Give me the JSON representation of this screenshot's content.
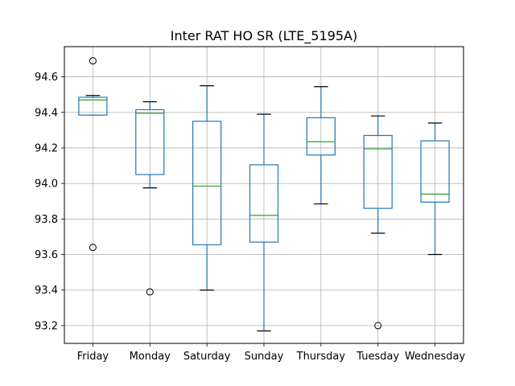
{
  "chart_data": {
    "type": "box",
    "title": "Inter RAT HO SR (LTE_5195A)",
    "xlabel": "",
    "ylabel": "",
    "ylim": [
      93.1,
      94.77
    ],
    "yticks": [
      93.2,
      93.4,
      93.6,
      93.8,
      94.0,
      94.2,
      94.4,
      94.6
    ],
    "ytick_labels": [
      "93.2",
      "93.4",
      "93.6",
      "93.8",
      "94.0",
      "94.2",
      "94.4",
      "94.6"
    ],
    "grid": true,
    "colors": {
      "box": "#1f77b4",
      "median": "#2ca02c",
      "whisker_cap": "#000000",
      "grid": "#b0b0b0",
      "flier": "#000000"
    },
    "categories": [
      "Friday",
      "Monday",
      "Saturday",
      "Sunday",
      "Thursday",
      "Tuesday",
      "Wednesday"
    ],
    "boxes": [
      {
        "label": "Friday",
        "whislo": 94.385,
        "q1": 94.385,
        "med": 94.47,
        "q3": 94.485,
        "whishi": 94.495,
        "fliers": [
          94.69,
          93.64
        ]
      },
      {
        "label": "Monday",
        "whislo": 93.975,
        "q1": 94.05,
        "med": 94.395,
        "q3": 94.415,
        "whishi": 94.46,
        "fliers": [
          93.39
        ]
      },
      {
        "label": "Saturday",
        "whislo": 93.4,
        "q1": 93.655,
        "med": 93.985,
        "q3": 94.35,
        "whishi": 94.55,
        "fliers": []
      },
      {
        "label": "Sunday",
        "whislo": 93.17,
        "q1": 93.67,
        "med": 93.82,
        "q3": 94.105,
        "whishi": 94.39,
        "fliers": []
      },
      {
        "label": "Thursday",
        "whislo": 93.885,
        "q1": 94.16,
        "med": 94.235,
        "q3": 94.37,
        "whishi": 94.545,
        "fliers": []
      },
      {
        "label": "Tuesday",
        "whislo": 93.72,
        "q1": 93.86,
        "med": 94.195,
        "q3": 94.27,
        "whishi": 94.38,
        "fliers": [
          93.2
        ]
      },
      {
        "label": "Wednesday",
        "whislo": 93.6,
        "q1": 93.895,
        "med": 93.94,
        "q3": 94.24,
        "whishi": 94.34,
        "fliers": []
      }
    ]
  }
}
